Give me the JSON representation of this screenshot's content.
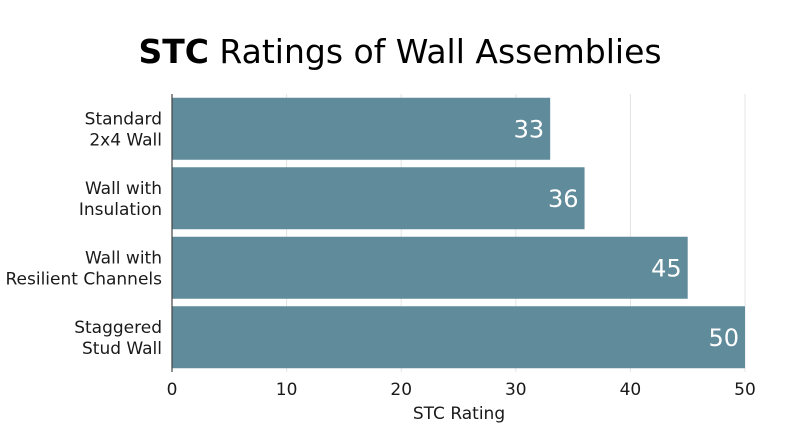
{
  "chart_data": {
    "type": "bar",
    "orientation": "horizontal",
    "title": {
      "bold_part": "STC",
      "rest": " Ratings of Wall Assemblies"
    },
    "categories": [
      [
        "Standard",
        "2x4 Wall"
      ],
      [
        "Wall with",
        "Insulation"
      ],
      [
        "Wall with",
        "Resilient Channels"
      ],
      [
        "Staggered",
        "Stud Wall"
      ]
    ],
    "values": [
      33,
      36,
      45,
      50
    ],
    "data_labels": [
      "33",
      "36",
      "45",
      "50"
    ],
    "xlabel": "STC Rating",
    "ylabel": "",
    "xlim": [
      0,
      50
    ],
    "xticks": [
      0,
      10,
      20,
      30,
      40,
      50
    ],
    "grid": "vertical",
    "legend": "none",
    "bar_color": "#5f8b9b",
    "label_color": "#ffffff"
  }
}
